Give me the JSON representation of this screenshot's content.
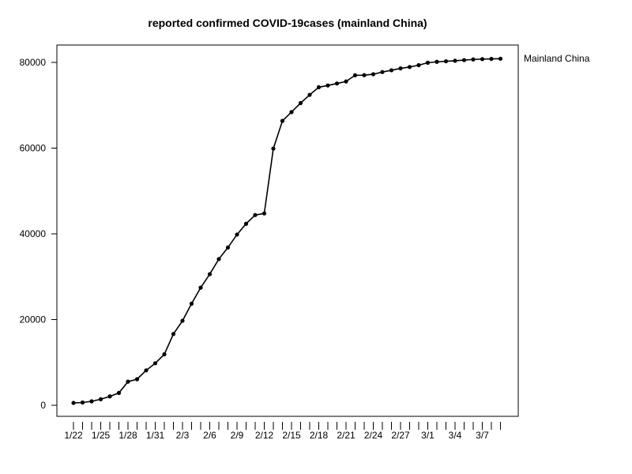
{
  "chart_data": {
    "type": "line",
    "title": "reported confirmed COVID-19cases (mainland China)",
    "xlabel": "",
    "ylabel": "",
    "ylim": [
      0,
      80000
    ],
    "y_ticks": [
      0,
      20000,
      40000,
      60000,
      80000
    ],
    "y_tick_labels": [
      "0",
      "20000",
      "40000",
      "60000",
      "80000"
    ],
    "x": [
      "1/22",
      "1/23",
      "1/24",
      "1/25",
      "1/26",
      "1/27",
      "1/28",
      "1/29",
      "1/30",
      "1/31",
      "2/1",
      "2/2",
      "2/3",
      "2/4",
      "2/5",
      "2/6",
      "2/7",
      "2/8",
      "2/9",
      "2/10",
      "2/11",
      "2/12",
      "2/13",
      "2/14",
      "2/15",
      "2/16",
      "2/17",
      "2/18",
      "2/19",
      "2/20",
      "2/21",
      "2/22",
      "2/23",
      "2/24",
      "2/25",
      "2/26",
      "2/27",
      "2/28",
      "2/29",
      "3/1",
      "3/2",
      "3/3",
      "3/4",
      "3/5",
      "3/6",
      "3/7",
      "3/8",
      "3/9"
    ],
    "x_tick_labels": [
      "1/22",
      "1/25",
      "1/28",
      "1/31",
      "2/3",
      "2/6",
      "2/9",
      "2/12",
      "2/15",
      "2/18",
      "2/21",
      "2/24",
      "2/27",
      "3/1",
      "3/4",
      "3/7"
    ],
    "series": [
      {
        "name": "Mainland China",
        "color": "#000000",
        "values": [
          548,
          643,
          920,
          1406,
          2075,
          2877,
          5509,
          6087,
          8141,
          9802,
          11891,
          16630,
          19716,
          23707,
          27440,
          30587,
          34110,
          36814,
          39829,
          42354,
          44386,
          44759,
          59895,
          66358,
          68413,
          70513,
          72434,
          74211,
          74619,
          75077,
          75550,
          77001,
          77022,
          77241,
          77754,
          78166,
          78600,
          78928,
          79356,
          79932,
          80136,
          80261,
          80386,
          80537,
          80690,
          80770,
          80823,
          80860
        ]
      }
    ],
    "legend_position": "right",
    "grid": false
  }
}
